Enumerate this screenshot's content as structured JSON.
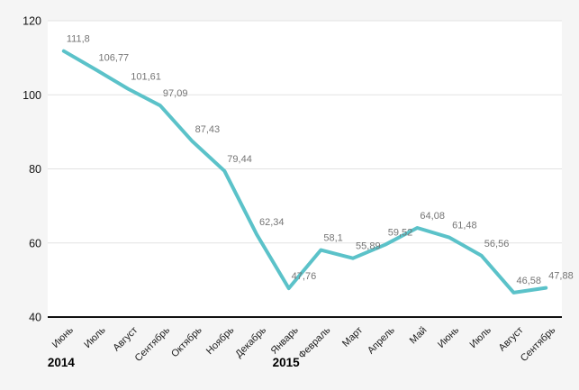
{
  "page": {
    "background_color": "#f5f5f5"
  },
  "chart_data": {
    "type": "line",
    "categories": [
      "Июнь",
      "Июль",
      "Август",
      "Сентябрь",
      "Октябрь",
      "Ноябрь",
      "Декабрь",
      "Январь",
      "Февраль",
      "Март",
      "Апрель",
      "Май",
      "Июнь",
      "Июль",
      "Август",
      "Сентябрь"
    ],
    "values": [
      111.8,
      106.77,
      101.61,
      97.09,
      87.43,
      79.44,
      62.34,
      47.76,
      58.1,
      55.89,
      59.52,
      64.08,
      61.48,
      56.56,
      46.58,
      47.88
    ],
    "value_labels": [
      "111,8",
      "106,77",
      "101,61",
      "97,09",
      "87,43",
      "79,44",
      "62,34",
      "47,76",
      "58,1",
      "55,89",
      "59,52",
      "64,08",
      "61,48",
      "56,56",
      "46,58",
      "47,88"
    ],
    "y_ticks": [
      40,
      60,
      80,
      100,
      120
    ],
    "ylim": [
      40,
      120
    ],
    "year_markers": [
      {
        "label": "2014",
        "month_index": 0
      },
      {
        "label": "2015",
        "month_index": 7
      }
    ],
    "title": "",
    "xlabel": "",
    "ylabel": "",
    "grid": true,
    "legend_position": "none",
    "x_label_rotation_deg": -45,
    "colors": {
      "line": "#5bc2c9",
      "plot_background": "#ffffff",
      "page_background": "#f5f5f5",
      "gridline": "#e2e2e2",
      "axis_line": "#111111",
      "value_label": "#757575",
      "tick_label": "#141414",
      "year_label": "#000000"
    }
  }
}
